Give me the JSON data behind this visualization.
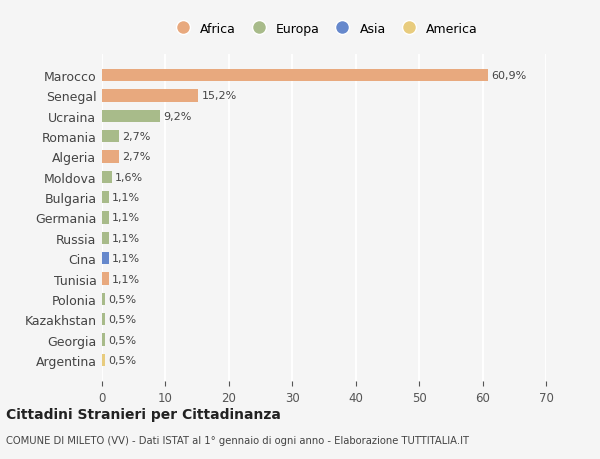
{
  "countries": [
    "Marocco",
    "Senegal",
    "Ucraina",
    "Romania",
    "Algeria",
    "Moldova",
    "Bulgaria",
    "Germania",
    "Russia",
    "Cina",
    "Tunisia",
    "Polonia",
    "Kazakhstan",
    "Georgia",
    "Argentina"
  ],
  "values": [
    60.9,
    15.2,
    9.2,
    2.7,
    2.7,
    1.6,
    1.1,
    1.1,
    1.1,
    1.1,
    1.1,
    0.5,
    0.5,
    0.5,
    0.5
  ],
  "labels": [
    "60,9%",
    "15,2%",
    "9,2%",
    "2,7%",
    "2,7%",
    "1,6%",
    "1,1%",
    "1,1%",
    "1,1%",
    "1,1%",
    "1,1%",
    "0,5%",
    "0,5%",
    "0,5%",
    "0,5%"
  ],
  "continents": [
    "Africa",
    "Africa",
    "Europa",
    "Europa",
    "Africa",
    "Europa",
    "Europa",
    "Europa",
    "Europa",
    "Asia",
    "Africa",
    "Europa",
    "Europa",
    "Europa",
    "America"
  ],
  "continent_colors": {
    "Africa": "#E8A97E",
    "Europa": "#A8BB8A",
    "Asia": "#6688CC",
    "America": "#E8CC7E"
  },
  "legend_order": [
    "Africa",
    "Europa",
    "Asia",
    "America"
  ],
  "background_color": "#f5f5f5",
  "title": "Cittadini Stranieri per Cittadinanza",
  "subtitle": "COMUNE DI MILETO (VV) - Dati ISTAT al 1° gennaio di ogni anno - Elaborazione TUTTITALIA.IT",
  "xlim": [
    0,
    70
  ],
  "xticks": [
    0,
    10,
    20,
    30,
    40,
    50,
    60,
    70
  ]
}
